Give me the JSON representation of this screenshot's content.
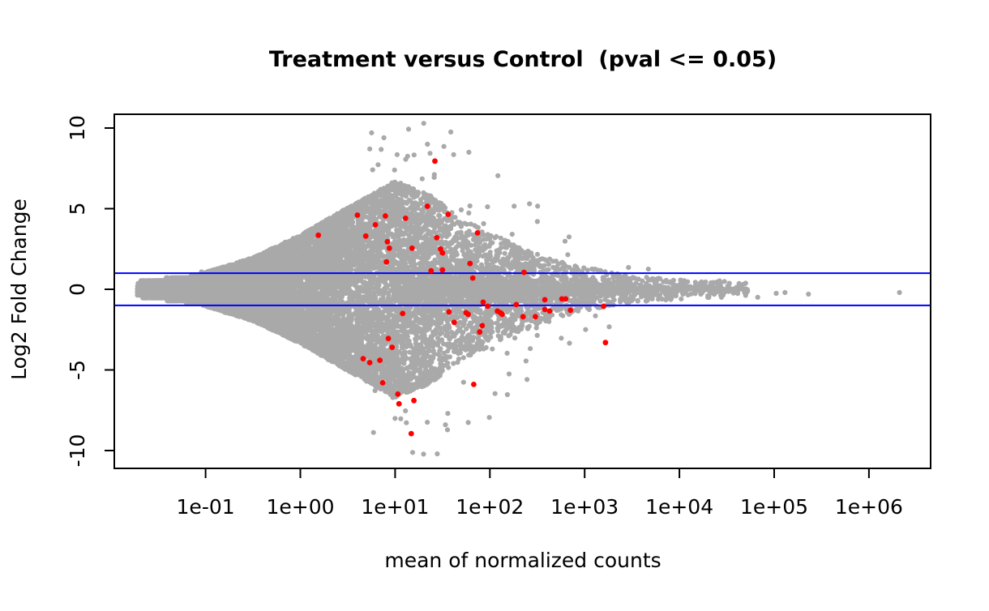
{
  "chart": {
    "title": "Treatment versus Control  (pval <= 0.05)",
    "xlabel": "mean of normalized counts",
    "ylabel": "Log2 Fold Change"
  },
  "chart_data": {
    "type": "scatter",
    "variant": "MA-plot (log-ratio vs mean expression), significant points highlighted",
    "title": "Treatment versus Control  (pval <= 0.05)",
    "xlabel": "mean of normalized counts",
    "ylabel": "Log2 Fold Change",
    "x_scale": "log10",
    "xlim": [
      0.019,
      4000000
    ],
    "ylim": [
      -11.1,
      10.9
    ],
    "x_tick_values": [
      0.1,
      1,
      10,
      100,
      1000,
      10000,
      100000,
      1000000
    ],
    "x_tick_labels": [
      "1e-01",
      "1e+00",
      "1e+01",
      "1e+02",
      "1e+03",
      "1e+04",
      "1e+05",
      "1e+06"
    ],
    "y_tick_values": [
      10,
      5,
      0,
      -5,
      -10
    ],
    "y_tick_labels": [
      "10",
      "5",
      "0",
      "-5",
      "-10"
    ],
    "grid": false,
    "legend": "none",
    "hline_values": [
      1,
      -1
    ],
    "hline_color": "#0000FF",
    "colors": {
      "nonsignificant": "#A9A9A9",
      "significant": "#FF0000",
      "axis": "#000000",
      "background": "#FFFFFF"
    },
    "point_radius": {
      "gray": 3.1,
      "red": 3.4
    },
    "significant_points": [
      [
        26.3,
        7.95
      ],
      [
        1.55,
        3.35
      ],
      [
        4.0,
        4.6
      ],
      [
        6.2,
        4.0
      ],
      [
        7.9,
        4.55
      ],
      [
        12.9,
        4.4
      ],
      [
        21.9,
        5.15
      ],
      [
        36.3,
        4.65
      ],
      [
        4.9,
        3.3
      ],
      [
        8.3,
        2.95
      ],
      [
        8.7,
        2.55
      ],
      [
        15.1,
        2.55
      ],
      [
        27.5,
        3.2
      ],
      [
        30.2,
        2.5
      ],
      [
        31.6,
        2.25
      ],
      [
        74,
        3.5
      ],
      [
        8.1,
        1.7
      ],
      [
        24,
        1.15
      ],
      [
        31.6,
        1.2
      ],
      [
        61.7,
        1.6
      ],
      [
        66,
        0.7
      ],
      [
        229,
        1.05
      ],
      [
        56,
        -1.45
      ],
      [
        85,
        -0.8
      ],
      [
        95,
        -1.05
      ],
      [
        120,
        -1.35
      ],
      [
        129,
        -1.45
      ],
      [
        135,
        -1.55
      ],
      [
        190,
        -0.95
      ],
      [
        224,
        -1.7
      ],
      [
        302,
        -1.7
      ],
      [
        380,
        -0.65
      ],
      [
        380,
        -1.25
      ],
      [
        427,
        -1.35
      ],
      [
        575,
        -0.6
      ],
      [
        631,
        -0.6
      ],
      [
        708,
        -1.3
      ],
      [
        1585,
        -1.05
      ],
      [
        1660,
        -3.3
      ],
      [
        83,
        -2.25
      ],
      [
        78,
        -2.65
      ],
      [
        12,
        -1.5
      ],
      [
        37,
        -1.4
      ],
      [
        59,
        -1.55
      ],
      [
        42,
        -2.05
      ],
      [
        8.5,
        -3.05
      ],
      [
        9.3,
        -3.6
      ],
      [
        4.6,
        -4.3
      ],
      [
        5.4,
        -4.55
      ],
      [
        6.9,
        -4.4
      ],
      [
        7.4,
        -5.8
      ],
      [
        10.7,
        -6.5
      ],
      [
        11.0,
        -7.1
      ],
      [
        15.8,
        -6.9
      ],
      [
        67.6,
        -5.9
      ],
      [
        14.8,
        -8.95
      ]
    ],
    "gray_outlier_points": [
      [
        60,
        8.5
      ],
      [
        10.5,
        8.35
      ],
      [
        36,
        -7.7
      ],
      [
        34,
        -8.4
      ],
      [
        240,
        2.1
      ],
      [
        500,
        1.75
      ],
      [
        2900,
        1.35
      ],
      [
        4700,
        1.25
      ],
      [
        1300,
        -1.65
      ],
      [
        260,
        -2.3
      ],
      [
        420,
        -2.0
      ],
      [
        52000,
        -0.15
      ],
      [
        67000,
        -0.5
      ],
      [
        105000,
        -0.25
      ],
      [
        130000,
        -0.2
      ],
      [
        230000,
        -0.3
      ],
      [
        2100000,
        -0.2
      ]
    ],
    "background_cloud": {
      "n": 15000,
      "seed": 42,
      "logA_inverse_cdf": [
        [
          0,
          -1.72
        ],
        [
          0.03,
          -1.5
        ],
        [
          0.11,
          -1.05
        ],
        [
          0.24,
          -0.55
        ],
        [
          0.4,
          0.0
        ],
        [
          0.55,
          0.55
        ],
        [
          0.66,
          1.0
        ],
        [
          0.78,
          1.5
        ],
        [
          0.86,
          2.0
        ],
        [
          0.92,
          2.5
        ],
        [
          0.955,
          3.0
        ],
        [
          0.978,
          3.5
        ],
        [
          0.99,
          4.0
        ],
        [
          0.997,
          4.4
        ],
        [
          1.0,
          4.72
        ]
      ],
      "envelope": [
        [
          -1.72,
          0.45
        ],
        [
          -1.2,
          0.8
        ],
        [
          -1.0,
          1.05
        ],
        [
          -0.5,
          1.95
        ],
        [
          0.0,
          3.35
        ],
        [
          0.5,
          5.05
        ],
        [
          1.0,
          6.7
        ],
        [
          1.35,
          5.9
        ],
        [
          1.7,
          4.4
        ],
        [
          2.0,
          3.5
        ],
        [
          2.35,
          2.5
        ],
        [
          2.7,
          1.8
        ],
        [
          3.0,
          1.35
        ],
        [
          3.5,
          0.85
        ],
        [
          4.0,
          0.6
        ],
        [
          4.72,
          0.45
        ]
      ],
      "fill_exponent_rising": 0.9,
      "fill_exponent_decay": 2.4,
      "edge_pile_fraction": 0.07,
      "tail_fraction": 0.012,
      "tail_extra_mult": 1.4,
      "quantize_below_logA": -1.03,
      "quantize_step": 0.18
    }
  }
}
